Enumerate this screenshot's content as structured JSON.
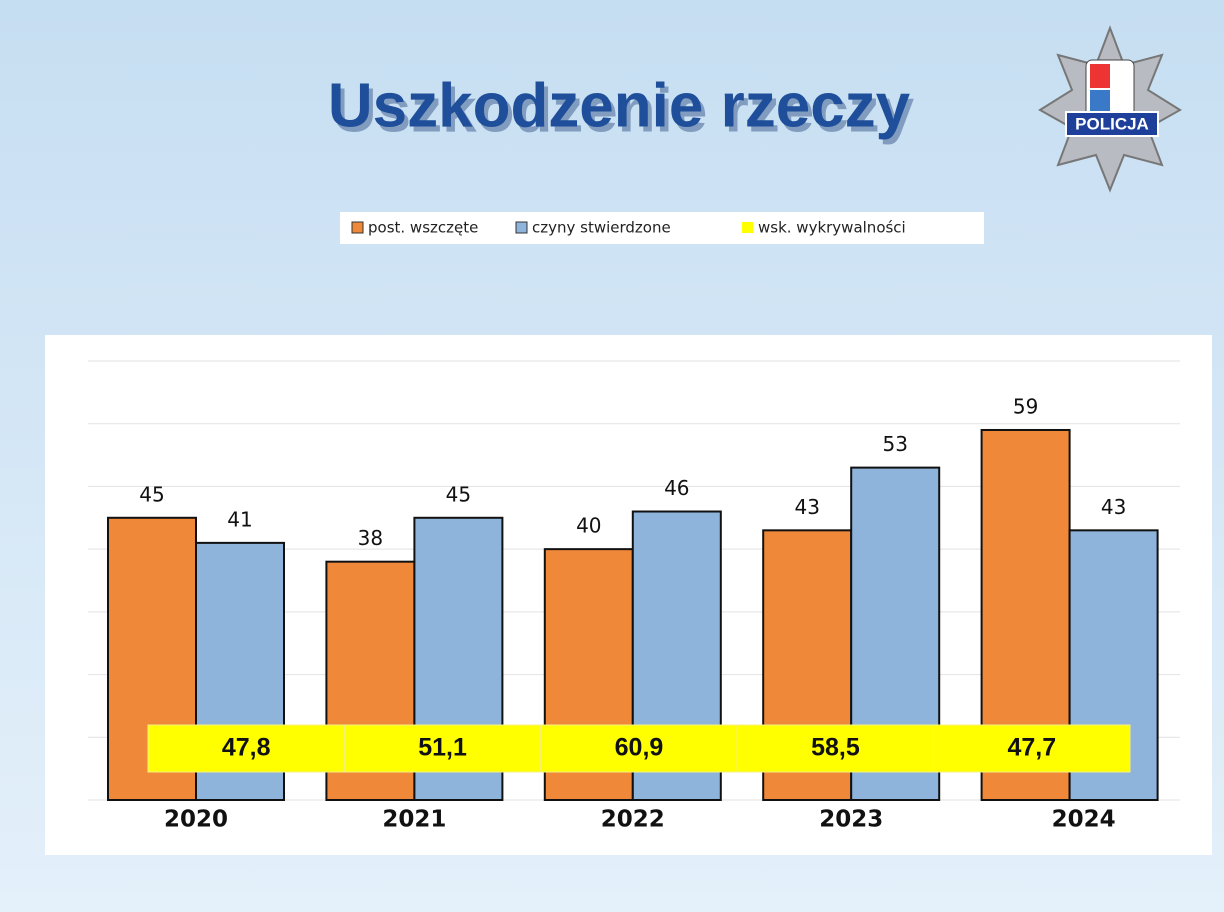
{
  "chart_data": {
    "type": "bar",
    "title": "Uszkodzenie rzeczy",
    "logo_text": "POLICJA",
    "categories": [
      "2020",
      "2021",
      "2022",
      "2023",
      "2024"
    ],
    "series": [
      {
        "name": "post. wszczęte",
        "color": "#f0883a",
        "values": [
          45,
          38,
          40,
          43,
          59
        ]
      },
      {
        "name": "czyny stwierdzone",
        "color": "#8fb4dc",
        "values": [
          41,
          45,
          46,
          53,
          43
        ]
      }
    ],
    "rate": {
      "name": "wsk. wykrywalności",
      "color": "#ffff00",
      "values": [
        47.8,
        51.1,
        60.9,
        58.5,
        47.7
      ],
      "value_labels": [
        "47,8",
        "51,1",
        "60,9",
        "58,5",
        "47,7"
      ]
    },
    "ylim": [
      0,
      70
    ],
    "yticks": [
      0,
      10,
      20,
      30,
      40,
      50,
      60,
      70
    ],
    "grid": true
  }
}
